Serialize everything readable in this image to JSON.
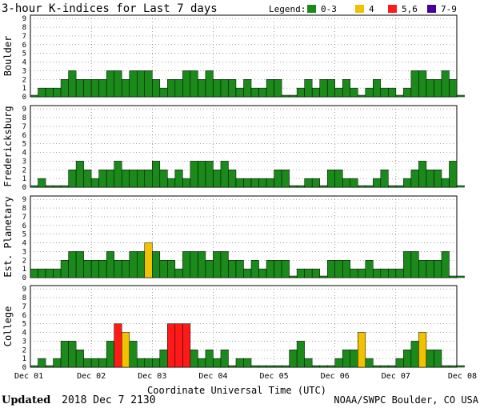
{
  "header": {
    "title": "3-hour K-indices for Last 7 days",
    "legend_label": "Legend:",
    "legend": [
      {
        "label": "0-3",
        "color": "#1b8a1b"
      },
      {
        "label": "4",
        "color": "#f2c200"
      },
      {
        "label": "5,6",
        "color": "#ff1a1a"
      },
      {
        "label": "7-9",
        "color": "#46009a"
      }
    ]
  },
  "footer": {
    "updated_label": "Updated",
    "updated_value": "2018 Dec  7 2130",
    "source": "NOAA/SWPC Boulder, CO USA"
  },
  "chart_data": [
    {
      "type": "bar",
      "ylabel": "Boulder",
      "ylim": [
        0,
        9
      ],
      "yticks": [
        "0",
        "1",
        "2",
        "3",
        "4",
        "5",
        "6",
        "7",
        "8",
        "9"
      ],
      "values": [
        0,
        1,
        1,
        1,
        2,
        3,
        2,
        2,
        2,
        2,
        3,
        3,
        2,
        3,
        3,
        3,
        2,
        1,
        2,
        2,
        3,
        3,
        2,
        3,
        2,
        2,
        2,
        1,
        2,
        1,
        1,
        2,
        2,
        0,
        0,
        1,
        2,
        1,
        2,
        2,
        1,
        2,
        1,
        0,
        1,
        2,
        1,
        1,
        0,
        1,
        3,
        3,
        2,
        2,
        3,
        2,
        0
      ]
    },
    {
      "type": "bar",
      "ylabel": "Fredericksburg",
      "ylim": [
        0,
        9
      ],
      "yticks": [
        "0",
        "1",
        "2",
        "3",
        "4",
        "5",
        "6",
        "7",
        "8",
        "9"
      ],
      "values": [
        0,
        1,
        0,
        0,
        0,
        2,
        3,
        2,
        1,
        2,
        2,
        3,
        2,
        2,
        2,
        2,
        3,
        2,
        1,
        2,
        1,
        3,
        3,
        3,
        2,
        3,
        2,
        1,
        1,
        1,
        1,
        1,
        2,
        2,
        0,
        0,
        1,
        1,
        0,
        2,
        2,
        1,
        1,
        0,
        0,
        1,
        2,
        0,
        0,
        1,
        2,
        3,
        2,
        2,
        1,
        3,
        0
      ]
    },
    {
      "type": "bar",
      "ylabel": "Est. Planetary",
      "ylim": [
        0,
        9
      ],
      "yticks": [
        "0",
        "1",
        "2",
        "3",
        "4",
        "5",
        "6",
        "7",
        "8",
        "9"
      ],
      "values": [
        1,
        1,
        1,
        1,
        2,
        3,
        3,
        2,
        2,
        2,
        3,
        2,
        2,
        3,
        3,
        4,
        3,
        2,
        2,
        1,
        3,
        3,
        3,
        2,
        3,
        3,
        2,
        2,
        1,
        2,
        1,
        2,
        2,
        2,
        0,
        1,
        1,
        1,
        0,
        2,
        2,
        2,
        1,
        1,
        2,
        1,
        1,
        1,
        1,
        3,
        3,
        2,
        2,
        2,
        3,
        0,
        0
      ]
    },
    {
      "type": "bar",
      "ylabel": "College",
      "ylim": [
        0,
        9
      ],
      "yticks": [
        "0",
        "1",
        "2",
        "3",
        "4",
        "5",
        "6",
        "7",
        "8",
        "9"
      ],
      "values": [
        0,
        1,
        0,
        1,
        3,
        3,
        2,
        1,
        1,
        1,
        3,
        5,
        4,
        3,
        1,
        1,
        1,
        2,
        5,
        5,
        5,
        2,
        1,
        2,
        1,
        2,
        0,
        1,
        1,
        0,
        0,
        0,
        0,
        0,
        2,
        3,
        1,
        0,
        0,
        0,
        1,
        2,
        2,
        4,
        1,
        0,
        0,
        0,
        1,
        2,
        3,
        4,
        2,
        2,
        0,
        0,
        0
      ]
    }
  ],
  "x_axis": {
    "ticks": [
      "Dec 01",
      "Dec 02",
      "Dec 03",
      "Dec 04",
      "Dec 05",
      "Dec 06",
      "Dec 07",
      "Dec 08"
    ],
    "xlabel": "Coordinate Universal Time (UTC)",
    "bins_per_day": 8
  }
}
